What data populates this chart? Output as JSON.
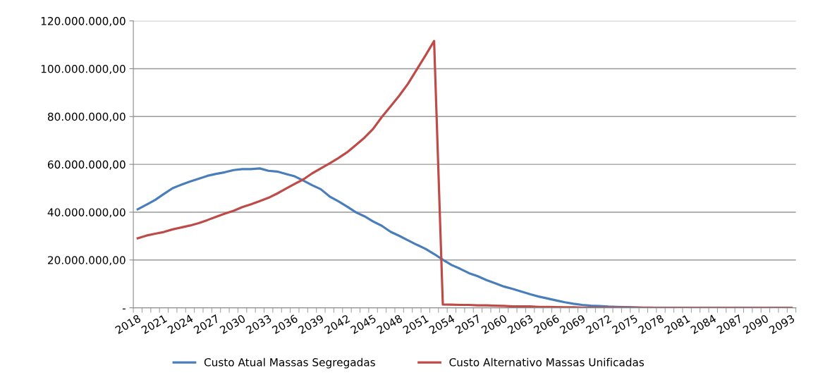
{
  "chart_data": {
    "type": "line",
    "categories": [
      "2018",
      null,
      null,
      "2021",
      null,
      null,
      "2024",
      null,
      null,
      "2027",
      null,
      null,
      "2030",
      null,
      null,
      "2033",
      null,
      null,
      "2036",
      null,
      null,
      "2039",
      null,
      null,
      "2042",
      null,
      null,
      "2045",
      null,
      null,
      "2048",
      null,
      null,
      "2051",
      null,
      null,
      "2054",
      null,
      null,
      "2057",
      null,
      null,
      "2060",
      null,
      null,
      "2063",
      null,
      null,
      "2066",
      null,
      null,
      "2069",
      null,
      null,
      "2072",
      null,
      null,
      "2075",
      null,
      null,
      "2078",
      null,
      null,
      "2081",
      null,
      null,
      "2084",
      null,
      null,
      "2087",
      null,
      null,
      "2090",
      null,
      null,
      "2093"
    ],
    "series": [
      {
        "name": "Custo Atual Massas Segregadas",
        "color": "#4a7ebb",
        "values": [
          41200000,
          43100000,
          45100000,
          47600000,
          50000000,
          51500000,
          52800000,
          54000000,
          55200000,
          56000000,
          56700000,
          57600000,
          58000000,
          58000000,
          58300000,
          57300000,
          57000000,
          56000000,
          55000000,
          53200000,
          51300000,
          49600000,
          46600000,
          44600000,
          42400000,
          40000000,
          38300000,
          36100000,
          34300000,
          31800000,
          30100000,
          28200000,
          26400000,
          24700000,
          22500000,
          20100000,
          17900000,
          16300000,
          14500000,
          13200000,
          11600000,
          10300000,
          8900000,
          7900000,
          6800000,
          5700000,
          4700000,
          3900000,
          3100000,
          2300000,
          1700000,
          1200000,
          900000,
          700000,
          500000,
          400000,
          300000,
          200000,
          100000,
          100000,
          null,
          null,
          null,
          null,
          null,
          null,
          null,
          null,
          null,
          null,
          null,
          null,
          null,
          null,
          null,
          null
        ]
      },
      {
        "name": "Custo Alternativo Massas Unificadas",
        "color": "#be4b48",
        "values": [
          29100000,
          30200000,
          31000000,
          31700000,
          32800000,
          33600000,
          34400000,
          35400000,
          36700000,
          38100000,
          39400000,
          40600000,
          42100000,
          43300000,
          44600000,
          46000000,
          47800000,
          49800000,
          51800000,
          53700000,
          56200000,
          58300000,
          60400000,
          62600000,
          65000000,
          68000000,
          71100000,
          74800000,
          79800000,
          84200000,
          88700000,
          93700000,
          99600000,
          105500000,
          111600000,
          1400000,
          1300000,
          1200000,
          1200000,
          1000000,
          1000000,
          900000,
          800000,
          600000,
          600000,
          600000,
          400000,
          400000,
          300000,
          200000,
          200000,
          100000,
          0,
          0,
          0,
          0,
          0,
          0,
          0,
          0,
          0,
          0,
          0,
          0,
          0,
          0,
          0,
          0,
          0,
          0,
          0,
          0,
          0,
          0,
          0,
          0
        ]
      }
    ],
    "ylim": [
      0,
      120000000
    ],
    "yticks": [
      {
        "value": 0,
        "label": "-"
      },
      {
        "value": 20000000,
        "label": "20.000.000,00"
      },
      {
        "value": 40000000,
        "label": "40.000.000,00"
      },
      {
        "value": 60000000,
        "label": "60.000.000,00"
      },
      {
        "value": 80000000,
        "label": "80.000.000,00"
      },
      {
        "value": 100000000,
        "label": "100.000.000,00"
      },
      {
        "value": 120000000,
        "label": "120.000.000,00"
      }
    ],
    "grid": "y",
    "legend": "bottom",
    "marker": "none",
    "line_style": "solid"
  }
}
